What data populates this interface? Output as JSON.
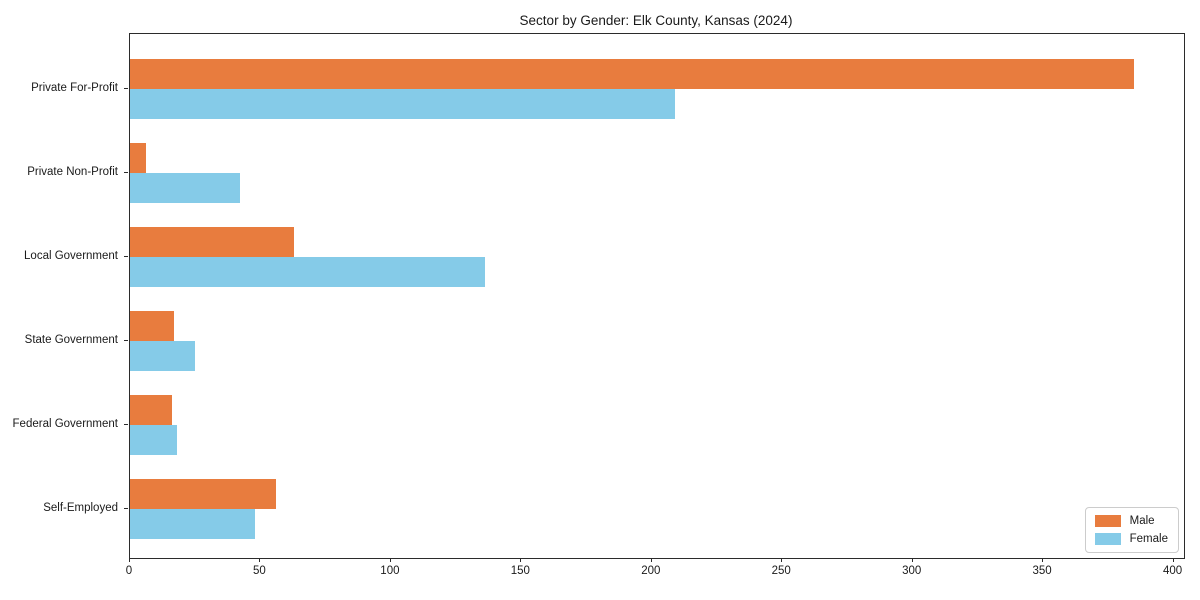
{
  "title": "Sector by Gender: Elk County, Kansas (2024)",
  "chart_data": {
    "type": "bar",
    "orientation": "horizontal",
    "title": "Sector by Gender: Elk County, Kansas (2024)",
    "categories": [
      "Private For-Profit",
      "Private Non-Profit",
      "Local Government",
      "State Government",
      "Federal Government",
      "Self-Employed"
    ],
    "series": [
      {
        "name": "Male",
        "color": "#e87c3e",
        "values": [
          385,
          6,
          63,
          17,
          16,
          56
        ]
      },
      {
        "name": "Female",
        "color": "#85cbe8",
        "values": [
          209,
          42,
          136,
          25,
          18,
          48
        ]
      }
    ],
    "xlabel": "",
    "ylabel": "",
    "xlim": [
      0,
      404
    ],
    "xticks": [
      0,
      50,
      100,
      150,
      200,
      250,
      300,
      350,
      400
    ],
    "grid": false,
    "legend_position": "lower right"
  }
}
